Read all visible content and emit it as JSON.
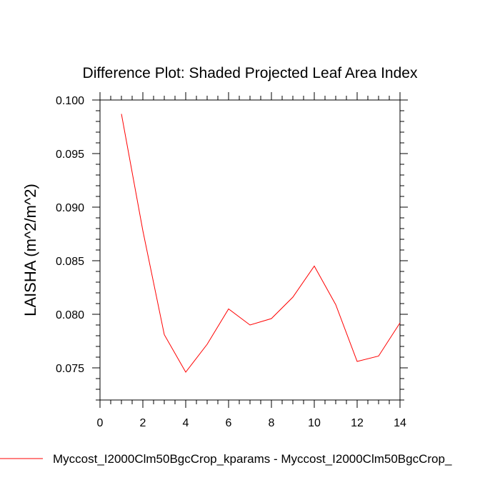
{
  "chart_data": {
    "type": "line",
    "title": "Difference Plot: Shaded Projected Leaf Area Index",
    "xlabel": "",
    "ylabel": "LAISHA  (m^2/m^2)",
    "xlim": [
      0,
      14
    ],
    "ylim": [
      0.072,
      0.1
    ],
    "x_ticks": [
      0,
      2,
      4,
      6,
      8,
      10,
      12,
      14
    ],
    "x_tick_labels": [
      "0",
      "2",
      "4",
      "6",
      "8",
      "10",
      "12",
      "14"
    ],
    "y_ticks": [
      0.075,
      0.08,
      0.085,
      0.09,
      0.095,
      0.1
    ],
    "y_tick_labels": [
      "0.075",
      "0.080",
      "0.085",
      "0.090",
      "0.095",
      "0.100"
    ],
    "x_minor_step": 0.5,
    "y_minor_step": 0.001,
    "grid": false,
    "legend_position": "bottom-left",
    "series": [
      {
        "name": "Myccost_I2000Clm50BgcCrop_kparams - Myccost_I2000Clm50BgcCrop_",
        "color": "#ff0000",
        "x": [
          1,
          2,
          3,
          4,
          5,
          6,
          7,
          8,
          9,
          10,
          11,
          12,
          13,
          14
        ],
        "values": [
          0.0987,
          0.0878,
          0.0781,
          0.0746,
          0.0772,
          0.0805,
          0.079,
          0.0796,
          0.0816,
          0.0845,
          0.0809,
          0.0756,
          0.0761,
          0.0792
        ]
      }
    ]
  }
}
